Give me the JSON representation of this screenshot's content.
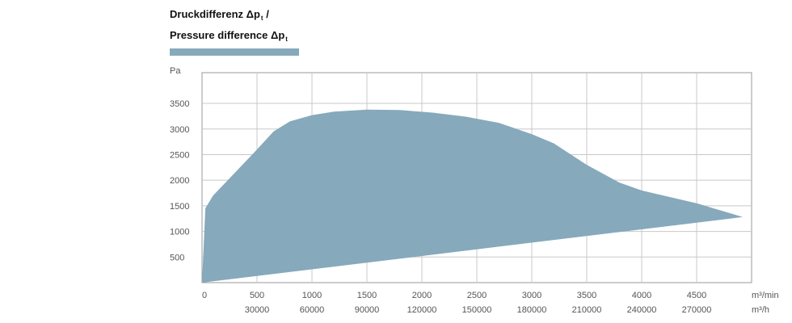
{
  "chart": {
    "title_line1": "Druckdifferenz Δp",
    "title_line1_sub": "t",
    "title_line1_suffix": " /",
    "title_line2": "Pressure difference Δp",
    "title_line2_sub": "t"
  },
  "colors": {
    "area": "#86a9bc",
    "grid": "#c8c8c8",
    "axis": "#999999"
  },
  "chart_data": {
    "type": "area",
    "title": "Druckdifferenz Δpt / Pressure difference Δpt",
    "ylabel": "Pa",
    "xlabel": "m³/min",
    "xlabel_secondary": "m³/h",
    "xlim": [
      0,
      5000
    ],
    "ylim": [
      0,
      4100
    ],
    "xticks": [
      0,
      500,
      1000,
      1500,
      2000,
      2500,
      3000,
      3500,
      4000,
      4500
    ],
    "xticks_secondary": [
      {
        "at": 500,
        "label": "30000"
      },
      {
        "at": 1000,
        "label": "60000"
      },
      {
        "at": 1500,
        "label": "90000"
      },
      {
        "at": 2000,
        "label": "120000"
      },
      {
        "at": 2500,
        "label": "150000"
      },
      {
        "at": 3000,
        "label": "180000"
      },
      {
        "at": 3500,
        "label": "210000"
      },
      {
        "at": 4000,
        "label": "240000"
      },
      {
        "at": 4500,
        "label": "270000"
      }
    ],
    "yticks": [
      500,
      1000,
      1500,
      2000,
      2500,
      3000,
      3500
    ],
    "grid": true,
    "legend": "top-left",
    "upper_boundary": [
      {
        "x": 0,
        "y": 0
      },
      {
        "x": 30,
        "y": 1450
      },
      {
        "x": 100,
        "y": 1700
      },
      {
        "x": 300,
        "y": 2150
      },
      {
        "x": 500,
        "y": 2600
      },
      {
        "x": 650,
        "y": 2950
      },
      {
        "x": 800,
        "y": 3150
      },
      {
        "x": 1000,
        "y": 3270
      },
      {
        "x": 1200,
        "y": 3340
      },
      {
        "x": 1500,
        "y": 3380
      },
      {
        "x": 1800,
        "y": 3370
      },
      {
        "x": 2100,
        "y": 3320
      },
      {
        "x": 2400,
        "y": 3240
      },
      {
        "x": 2700,
        "y": 3120
      },
      {
        "x": 3000,
        "y": 2900
      },
      {
        "x": 3200,
        "y": 2720
      },
      {
        "x": 3500,
        "y": 2300
      },
      {
        "x": 3800,
        "y": 1950
      },
      {
        "x": 4000,
        "y": 1800
      },
      {
        "x": 4500,
        "y": 1550
      },
      {
        "x": 4920,
        "y": 1280
      }
    ],
    "lower_boundary": [
      {
        "x": 4920,
        "y": 1280
      },
      {
        "x": 0,
        "y": 0
      }
    ]
  }
}
